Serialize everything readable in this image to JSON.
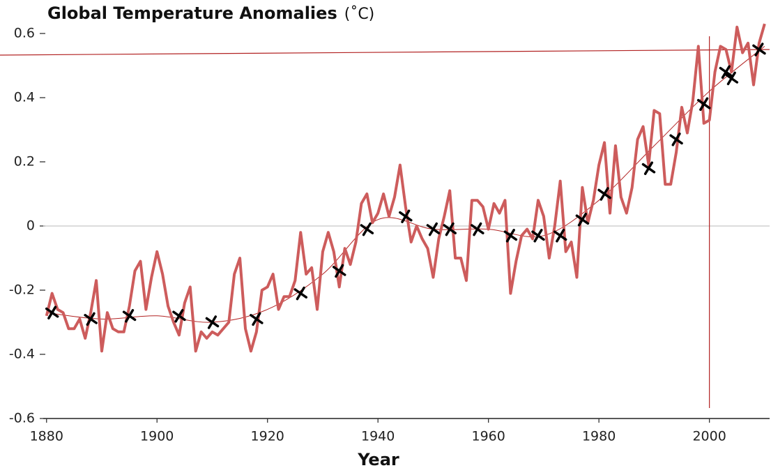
{
  "chart_data": {
    "type": "line",
    "title": "Global Temperature Anomalies",
    "unit": "(˚C)",
    "xlabel": "Year",
    "x": [
      1880,
      1881,
      1882,
      1883,
      1884,
      1885,
      1886,
      1887,
      1888,
      1889,
      1890,
      1891,
      1892,
      1893,
      1894,
      1895,
      1896,
      1897,
      1898,
      1899,
      1900,
      1901,
      1902,
      1903,
      1904,
      1905,
      1906,
      1907,
      1908,
      1909,
      1910,
      1911,
      1912,
      1913,
      1914,
      1915,
      1916,
      1917,
      1918,
      1919,
      1920,
      1921,
      1922,
      1923,
      1924,
      1925,
      1926,
      1927,
      1928,
      1929,
      1930,
      1931,
      1932,
      1933,
      1934,
      1935,
      1936,
      1937,
      1938,
      1939,
      1940,
      1941,
      1942,
      1943,
      1944,
      1945,
      1946,
      1947,
      1948,
      1949,
      1950,
      1951,
      1952,
      1953,
      1954,
      1955,
      1956,
      1957,
      1958,
      1959,
      1960,
      1961,
      1962,
      1963,
      1964,
      1965,
      1966,
      1967,
      1968,
      1969,
      1970,
      1971,
      1972,
      1973,
      1974,
      1975,
      1976,
      1977,
      1978,
      1979,
      1980,
      1981,
      1982,
      1983,
      1984,
      1985,
      1986,
      1987,
      1988,
      1989,
      1990,
      1991,
      1992,
      1993,
      1994,
      1995,
      1996,
      1997,
      1998,
      1999,
      2000,
      2001,
      2002,
      2003,
      2004,
      2005,
      2006,
      2007,
      2008,
      2009,
      2010
    ],
    "series": [
      {
        "color": "#cd5c5c",
        "values": [
          -0.28,
          -0.21,
          -0.26,
          -0.27,
          -0.32,
          -0.32,
          -0.29,
          -0.35,
          -0.27,
          -0.17,
          -0.39,
          -0.27,
          -0.32,
          -0.33,
          -0.33,
          -0.25,
          -0.14,
          -0.11,
          -0.26,
          -0.16,
          -0.08,
          -0.15,
          -0.25,
          -0.3,
          -0.34,
          -0.24,
          -0.19,
          -0.39,
          -0.33,
          -0.35,
          -0.33,
          -0.34,
          -0.32,
          -0.3,
          -0.15,
          -0.1,
          -0.32,
          -0.39,
          -0.33,
          -0.2,
          -0.19,
          -0.15,
          -0.26,
          -0.22,
          -0.22,
          -0.17,
          -0.02,
          -0.15,
          -0.13,
          -0.26,
          -0.08,
          -0.02,
          -0.08,
          -0.19,
          -0.07,
          -0.12,
          -0.05,
          0.07,
          0.1,
          0.01,
          0.04,
          0.1,
          0.03,
          0.09,
          0.19,
          0.06,
          -0.05,
          0.0,
          -0.04,
          -0.07,
          -0.16,
          -0.04,
          0.03,
          0.11,
          -0.1,
          -0.1,
          -0.17,
          0.08,
          0.08,
          0.06,
          -0.01,
          0.07,
          0.04,
          0.08,
          -0.21,
          -0.11,
          -0.03,
          -0.01,
          -0.04,
          0.08,
          0.03,
          -0.1,
          0.0,
          0.14,
          -0.08,
          -0.05,
          -0.16,
          0.12,
          0.01,
          0.08,
          0.19,
          0.26,
          0.04,
          0.25,
          0.09,
          0.04,
          0.12,
          0.27,
          0.31,
          0.19,
          0.36,
          0.35,
          0.13,
          0.13,
          0.23,
          0.37,
          0.29,
          0.39,
          0.56,
          0.32,
          0.33,
          0.48,
          0.56,
          0.55,
          0.48,
          0.62,
          0.54,
          0.57,
          0.44,
          0.57,
          0.63
        ]
      }
    ],
    "trend": {
      "color": "#b22222",
      "x": [
        1880,
        1890,
        1900,
        1910,
        1920,
        1930,
        1940,
        1950,
        1960,
        1970,
        1980,
        1990,
        2000,
        2010
      ],
      "values": [
        -0.27,
        -0.29,
        -0.28,
        -0.3,
        -0.26,
        -0.15,
        0.02,
        -0.01,
        -0.01,
        -0.03,
        0.08,
        0.25,
        0.42,
        0.56
      ]
    },
    "markers": {
      "color": "#000000",
      "x": [
        1881,
        1888,
        1895,
        1904,
        1910,
        1918,
        1926,
        1933,
        1938,
        1945,
        1950,
        1953,
        1958,
        1964,
        1969,
        1973,
        1977,
        1981,
        1989,
        1994,
        1999,
        2003,
        2004,
        2009
      ],
      "values": [
        -0.27,
        -0.29,
        -0.28,
        -0.28,
        -0.3,
        -0.29,
        -0.21,
        -0.14,
        -0.01,
        0.03,
        -0.01,
        -0.01,
        -0.01,
        -0.03,
        -0.03,
        -0.03,
        0.02,
        0.1,
        0.18,
        0.27,
        0.38,
        0.48,
        0.46,
        0.55
      ]
    },
    "reference_lines": {
      "color": "#b22222",
      "y": 0.55,
      "x": 2000
    },
    "xlim": [
      1879.4,
      2010.9
    ],
    "ylim": [
      -0.6,
      0.6
    ],
    "xticks": [
      1880,
      1900,
      1920,
      1940,
      1960,
      1980,
      2000
    ],
    "yticks": [
      0.6,
      0.4,
      0.2,
      0,
      -0.2,
      -0.4,
      -0.6
    ],
    "zero_line": true
  }
}
